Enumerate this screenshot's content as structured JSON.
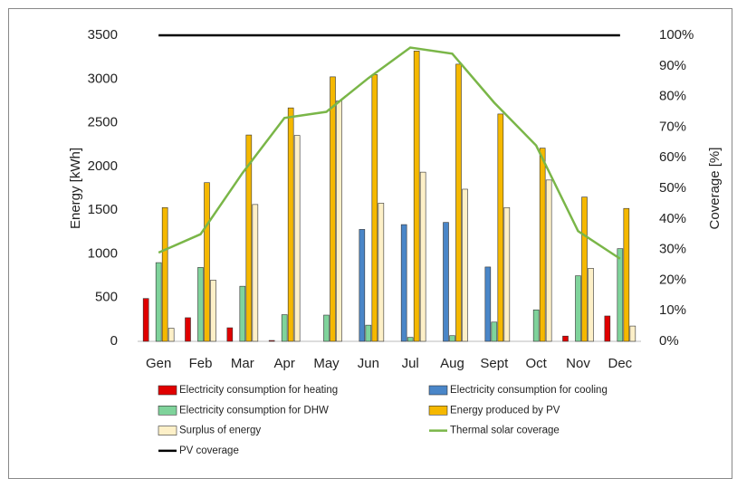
{
  "chart_data": {
    "type": "bar",
    "categories": [
      "Gen",
      "Feb",
      "Mar",
      "Apr",
      "May",
      "Jun",
      "Jul",
      "Aug",
      "Sept",
      "Oct",
      "Nov",
      "Dec"
    ],
    "y_label": "Energy [kWh]",
    "y2_label": "Coverage [%]",
    "ylim": [
      0,
      3500
    ],
    "yticks": [
      0,
      500,
      1000,
      1500,
      2000,
      2500,
      3000,
      3500
    ],
    "y2lim": [
      0,
      100
    ],
    "y2ticks": [
      {
        "value": 0,
        "label": "0%"
      },
      {
        "value": 10,
        "label": "10%"
      },
      {
        "value": 20,
        "label": "20%"
      },
      {
        "value": 30,
        "label": "30%"
      },
      {
        "value": 40,
        "label": "40%"
      },
      {
        "value": 50,
        "label": "50%"
      },
      {
        "value": 60,
        "label": "60%"
      },
      {
        "value": 70,
        "label": "70%"
      },
      {
        "value": 80,
        "label": "80%"
      },
      {
        "value": 90,
        "label": "90%"
      },
      {
        "value": 100,
        "label": "100%"
      }
    ],
    "series": [
      {
        "name": "Electricity consumption for heating",
        "type": "bar",
        "color": "#e00000",
        "values": [
          490,
          270,
          155,
          10,
          0,
          0,
          0,
          0,
          0,
          0,
          60,
          290
        ]
      },
      {
        "name": "Electricity consumption for cooling",
        "type": "bar",
        "color": "#4a86c8",
        "values": [
          0,
          0,
          0,
          0,
          0,
          1280,
          1335,
          1360,
          850,
          0,
          0,
          0
        ]
      },
      {
        "name": "Electricity consumption for DHW",
        "type": "bar",
        "color": "#7fd39b",
        "values": [
          900,
          845,
          630,
          305,
          300,
          185,
          45,
          65,
          220,
          360,
          750,
          1060
        ]
      },
      {
        "name": "Energy produced by PV",
        "type": "bar",
        "color": "#f5b800",
        "values": [
          1530,
          1815,
          2360,
          2670,
          3025,
          3050,
          3320,
          3170,
          2600,
          2210,
          1650,
          1520
        ]
      },
      {
        "name": "Surplus of energy",
        "type": "bar",
        "color": "#fdf0c8",
        "values": [
          150,
          700,
          1565,
          2355,
          2750,
          1580,
          1935,
          1740,
          1530,
          1845,
          835,
          175
        ]
      },
      {
        "name": "Thermal solar coverage",
        "type": "line",
        "axis": "y2",
        "color": "#7ab648",
        "values": [
          29,
          35,
          55,
          73,
          75,
          86,
          96,
          94,
          78,
          64,
          36,
          27
        ]
      },
      {
        "name": "PV coverage",
        "type": "line",
        "axis": "y2",
        "color": "#000000",
        "values": [
          100,
          100,
          100,
          100,
          100,
          100,
          100,
          100,
          100,
          100,
          100,
          100
        ]
      }
    ]
  }
}
